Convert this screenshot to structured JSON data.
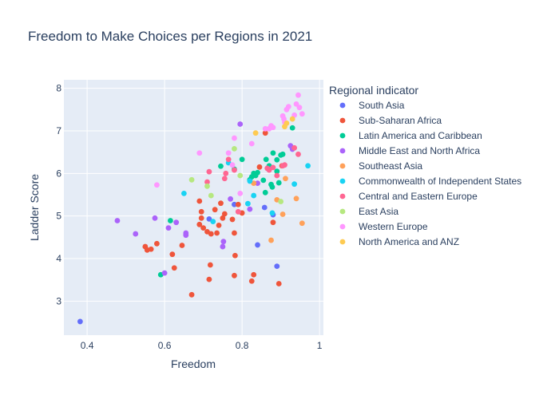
{
  "chart_data": {
    "type": "scatter",
    "title": "Freedom to Make Choices per Regions in 2021",
    "xlabel": "Freedom",
    "ylabel": "Ladder Score",
    "xlim": [
      0.34,
      1.01
    ],
    "ylim": [
      2.2,
      8.2
    ],
    "xticks": [
      0.4,
      0.6,
      0.8,
      1
    ],
    "xtick_labels": [
      "0.4",
      "0.6",
      "0.8",
      "1"
    ],
    "yticks": [
      3,
      4,
      5,
      6,
      7,
      8
    ],
    "ytick_labels": [
      "3",
      "4",
      "5",
      "6",
      "7",
      "8"
    ],
    "grid": true,
    "legend_title": "Regional indicator",
    "legend_position": "right",
    "series": [
      {
        "name": "South Asia",
        "color": "#636efa",
        "points": [
          [
            0.382,
            2.52
          ],
          [
            0.858,
            5.2
          ],
          [
            0.84,
            4.32
          ],
          [
            0.89,
            3.82
          ],
          [
            0.78,
            5.27
          ],
          [
            0.88,
            5.03
          ],
          [
            0.715,
            4.93
          ]
        ]
      },
      {
        "name": "Sub-Saharan Africa",
        "color": "#EF553B",
        "points": [
          [
            0.55,
            4.28
          ],
          [
            0.555,
            4.2
          ],
          [
            0.565,
            4.22
          ],
          [
            0.58,
            4.35
          ],
          [
            0.62,
            4.1
          ],
          [
            0.625,
            3.78
          ],
          [
            0.645,
            4.31
          ],
          [
            0.67,
            3.15
          ],
          [
            0.69,
            4.8
          ],
          [
            0.69,
            5.35
          ],
          [
            0.695,
            5.1
          ],
          [
            0.695,
            4.95
          ],
          [
            0.7,
            4.72
          ],
          [
            0.71,
            4.63
          ],
          [
            0.715,
            3.51
          ],
          [
            0.718,
            3.85
          ],
          [
            0.72,
            4.58
          ],
          [
            0.73,
            5.15
          ],
          [
            0.735,
            4.6
          ],
          [
            0.74,
            4.78
          ],
          [
            0.745,
            5.3
          ],
          [
            0.75,
            4.95
          ],
          [
            0.755,
            5.05
          ],
          [
            0.775,
            4.92
          ],
          [
            0.78,
            4.6
          ],
          [
            0.78,
            3.6
          ],
          [
            0.782,
            4.07
          ],
          [
            0.79,
            5.27
          ],
          [
            0.8,
            5.07
          ],
          [
            0.825,
            3.47
          ],
          [
            0.83,
            3.62
          ],
          [
            0.845,
            6.15
          ],
          [
            0.86,
            6.95
          ],
          [
            0.88,
            4.85
          ],
          [
            0.895,
            3.41
          ],
          [
            0.903,
            6.18
          ]
        ]
      },
      {
        "name": "Latin America and Caribbean",
        "color": "#00cc96",
        "points": [
          [
            0.59,
            3.62
          ],
          [
            0.615,
            4.89
          ],
          [
            0.745,
            6.17
          ],
          [
            0.78,
            6.1
          ],
          [
            0.8,
            6.33
          ],
          [
            0.82,
            5.85
          ],
          [
            0.825,
            5.92
          ],
          [
            0.83,
            6.0
          ],
          [
            0.835,
            5.95
          ],
          [
            0.84,
            6.02
          ],
          [
            0.855,
            5.84
          ],
          [
            0.86,
            5.55
          ],
          [
            0.862,
            6.33
          ],
          [
            0.87,
            6.18
          ],
          [
            0.875,
            5.74
          ],
          [
            0.878,
            5.68
          ],
          [
            0.88,
            6.48
          ],
          [
            0.89,
            6.32
          ],
          [
            0.89,
            6.05
          ],
          [
            0.895,
            5.78
          ],
          [
            0.9,
            6.43
          ],
          [
            0.905,
            6.45
          ],
          [
            0.93,
            7.07
          ]
        ]
      },
      {
        "name": "Middle East and North Africa",
        "color": "#ab63fa",
        "points": [
          [
            0.478,
            4.89
          ],
          [
            0.525,
            4.58
          ],
          [
            0.575,
            4.95
          ],
          [
            0.6,
            3.66
          ],
          [
            0.61,
            4.72
          ],
          [
            0.63,
            4.85
          ],
          [
            0.655,
            4.55
          ],
          [
            0.655,
            4.6
          ],
          [
            0.75,
            4.28
          ],
          [
            0.752,
            4.4
          ],
          [
            0.77,
            5.4
          ],
          [
            0.795,
            7.16
          ],
          [
            0.82,
            5.16
          ],
          [
            0.84,
            5.77
          ],
          [
            0.87,
            6.1
          ],
          [
            0.925,
            6.65
          ],
          [
            0.93,
            6.57
          ]
        ]
      },
      {
        "name": "Southeast Asia",
        "color": "#FFA15A",
        "points": [
          [
            0.83,
            5.77
          ],
          [
            0.875,
            4.43
          ],
          [
            0.89,
            5.38
          ],
          [
            0.905,
            5.04
          ],
          [
            0.912,
            5.88
          ],
          [
            0.94,
            5.41
          ],
          [
            0.955,
            4.83
          ]
        ]
      },
      {
        "name": "Commonwealth of Independent States",
        "color": "#19d3f3",
        "points": [
          [
            0.65,
            5.53
          ],
          [
            0.725,
            4.87
          ],
          [
            0.765,
            6.25
          ],
          [
            0.815,
            5.29
          ],
          [
            0.82,
            5.82
          ],
          [
            0.83,
            5.48
          ],
          [
            0.878,
            5.07
          ],
          [
            0.935,
            5.75
          ],
          [
            0.97,
            6.18
          ]
        ]
      },
      {
        "name": "Central and Eastern Europe",
        "color": "#FF6692",
        "points": [
          [
            0.71,
            5.8
          ],
          [
            0.715,
            6.04
          ],
          [
            0.755,
            5.88
          ],
          [
            0.758,
            6.0
          ],
          [
            0.765,
            6.33
          ],
          [
            0.78,
            6.08
          ],
          [
            0.79,
            5.1
          ],
          [
            0.865,
            6.12
          ],
          [
            0.87,
            6.08
          ],
          [
            0.88,
            6.14
          ],
          [
            0.89,
            5.95
          ],
          [
            0.905,
            6.18
          ],
          [
            0.91,
            6.2
          ],
          [
            0.935,
            6.6
          ],
          [
            0.945,
            6.45
          ]
        ]
      },
      {
        "name": "East Asia",
        "color": "#B6E880",
        "points": [
          [
            0.67,
            5.85
          ],
          [
            0.71,
            5.7
          ],
          [
            0.72,
            5.48
          ],
          [
            0.78,
            6.58
          ],
          [
            0.795,
            5.95
          ],
          [
            0.9,
            5.34
          ]
        ]
      },
      {
        "name": "Western Europe",
        "color": "#FF97FF",
        "points": [
          [
            0.58,
            5.73
          ],
          [
            0.69,
            6.48
          ],
          [
            0.765,
            6.48
          ],
          [
            0.775,
            6.2
          ],
          [
            0.78,
            6.83
          ],
          [
            0.795,
            5.53
          ],
          [
            0.825,
            6.7
          ],
          [
            0.86,
            7.05
          ],
          [
            0.87,
            7.05
          ],
          [
            0.875,
            7.12
          ],
          [
            0.88,
            7.08
          ],
          [
            0.905,
            7.35
          ],
          [
            0.908,
            7.28
          ],
          [
            0.915,
            7.5
          ],
          [
            0.92,
            7.57
          ],
          [
            0.935,
            7.37
          ],
          [
            0.94,
            7.63
          ],
          [
            0.945,
            7.84
          ],
          [
            0.948,
            7.55
          ],
          [
            0.955,
            7.4
          ],
          [
            0.91,
            7.2
          ]
        ]
      },
      {
        "name": "North America and ANZ",
        "color": "#FECB52",
        "points": [
          [
            0.835,
            6.95
          ],
          [
            0.91,
            7.1
          ],
          [
            0.915,
            7.18
          ],
          [
            0.93,
            7.28
          ]
        ]
      }
    ]
  }
}
